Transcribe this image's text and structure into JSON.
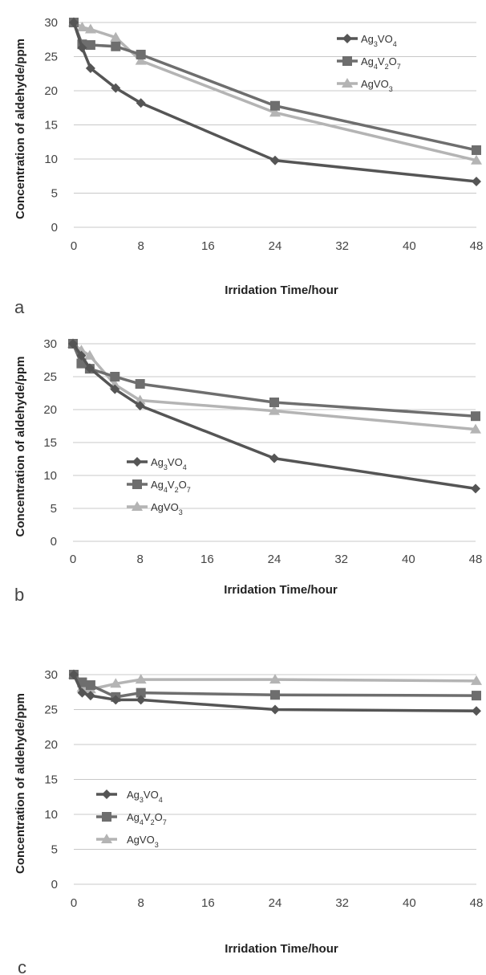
{
  "chart_data": [
    {
      "type": "line",
      "panel_label": "a",
      "xlabel": "Irridation Time/hour",
      "ylabel": "Concentration of aldehyde/ppm",
      "xlim": [
        0,
        48
      ],
      "ylim": [
        0,
        30
      ],
      "xticks": [
        0,
        8,
        16,
        24,
        32,
        40,
        48
      ],
      "yticks": [
        0,
        5,
        10,
        15,
        20,
        25,
        30
      ],
      "grid": "horizontal",
      "legend_position": "top-right",
      "series": [
        {
          "name": "Ag3VO4",
          "name_base": "Ag",
          "name_sub1": "3",
          "name_mid": "VO",
          "name_sub2": "4",
          "name_mid2": "",
          "name_sub3": "",
          "color": "#555555",
          "marker": "diamond",
          "x": [
            0,
            1,
            2,
            5,
            8,
            24,
            48
          ],
          "y": [
            30,
            26.3,
            23.3,
            20.4,
            18.2,
            9.8,
            6.7
          ]
        },
        {
          "name": "Ag4V2O7",
          "name_base": "Ag",
          "name_sub1": "4",
          "name_mid": "V",
          "name_sub2": "2",
          "name_mid2": "O",
          "name_sub3": "7",
          "color": "#6e6e6e",
          "marker": "square",
          "x": [
            0,
            1,
            2,
            5,
            8,
            24,
            48
          ],
          "y": [
            30,
            26.8,
            26.7,
            26.5,
            25.3,
            17.8,
            11.3
          ]
        },
        {
          "name": "AgVO3",
          "name_base": "AgVO",
          "name_sub1": "3",
          "name_mid": "",
          "name_sub2": "",
          "name_mid2": "",
          "name_sub3": "",
          "color": "#b4b4b4",
          "marker": "triangle",
          "x": [
            0,
            1,
            2,
            5,
            8,
            24,
            48
          ],
          "y": [
            30,
            29.3,
            29.0,
            27.8,
            24.4,
            16.8,
            9.8
          ]
        }
      ]
    },
    {
      "type": "line",
      "panel_label": "b",
      "xlabel": "Irridation Time/hour",
      "ylabel": "Concentration of aldehyde/ppm",
      "xlim": [
        0,
        48
      ],
      "ylim": [
        0,
        30
      ],
      "xticks": [
        0,
        8,
        16,
        24,
        32,
        40,
        48
      ],
      "yticks": [
        0,
        5,
        10,
        15,
        20,
        25,
        30
      ],
      "grid": "horizontal",
      "legend_position": "center-left",
      "series": [
        {
          "name": "Ag3VO4",
          "name_base": "Ag",
          "name_sub1": "3",
          "name_mid": "VO",
          "name_sub2": "4",
          "name_mid2": "",
          "name_sub3": "",
          "color": "#555555",
          "marker": "diamond",
          "x": [
            0,
            1,
            2,
            5,
            8,
            24,
            48
          ],
          "y": [
            30,
            28.2,
            26.3,
            23.1,
            20.6,
            12.6,
            8.0
          ]
        },
        {
          "name": "Ag4V2O7",
          "name_base": "Ag",
          "name_sub1": "4",
          "name_mid": "V",
          "name_sub2": "2",
          "name_mid2": "O",
          "name_sub3": "7",
          "color": "#6e6e6e",
          "marker": "square",
          "x": [
            0,
            1,
            2,
            5,
            8,
            24,
            48
          ],
          "y": [
            30,
            27.0,
            26.2,
            25.0,
            23.9,
            21.1,
            19.0
          ]
        },
        {
          "name": "AgVO3",
          "name_base": "AgVO",
          "name_sub1": "3",
          "name_mid": "",
          "name_sub2": "",
          "name_mid2": "",
          "name_sub3": "",
          "color": "#b4b4b4",
          "marker": "triangle",
          "x": [
            0,
            1,
            2,
            5,
            8,
            24,
            48
          ],
          "y": [
            30,
            29.0,
            28.2,
            23.8,
            21.4,
            19.8,
            17.0
          ]
        }
      ]
    },
    {
      "type": "line",
      "panel_label": "c",
      "xlabel": "Irridation Time/hour",
      "ylabel": "Concentration of aldehyde/ppm",
      "xlim": [
        0,
        48
      ],
      "ylim": [
        0,
        30
      ],
      "xticks": [
        0,
        8,
        16,
        24,
        32,
        40,
        48
      ],
      "yticks": [
        0,
        5,
        10,
        15,
        20,
        25,
        30
      ],
      "grid": "horizontal",
      "legend_position": "center-left",
      "series": [
        {
          "name": "Ag3VO4",
          "name_base": "Ag",
          "name_sub1": "3",
          "name_mid": "VO",
          "name_sub2": "4",
          "name_mid2": "",
          "name_sub3": "",
          "color": "#555555",
          "marker": "diamond",
          "x": [
            0,
            1,
            2,
            5,
            8,
            24,
            48
          ],
          "y": [
            30,
            27.4,
            27.0,
            26.4,
            26.4,
            25.0,
            24.8
          ]
        },
        {
          "name": "Ag4V2O7",
          "name_base": "Ag",
          "name_sub1": "4",
          "name_mid": "V",
          "name_sub2": "2",
          "name_mid2": "O",
          "name_sub3": "7",
          "color": "#6e6e6e",
          "marker": "square",
          "x": [
            0,
            1,
            2,
            5,
            8,
            24,
            48
          ],
          "y": [
            30,
            28.9,
            28.5,
            26.8,
            27.4,
            27.1,
            27.0
          ]
        },
        {
          "name": "AgVO3",
          "name_base": "AgVO",
          "name_sub1": "3",
          "name_mid": "",
          "name_sub2": "",
          "name_mid2": "",
          "name_sub3": "",
          "color": "#b4b4b4",
          "marker": "triangle",
          "x": [
            0,
            1,
            2,
            5,
            8,
            24,
            48
          ],
          "y": [
            30,
            28.1,
            27.9,
            28.7,
            29.3,
            29.3,
            29.1
          ]
        }
      ]
    }
  ]
}
